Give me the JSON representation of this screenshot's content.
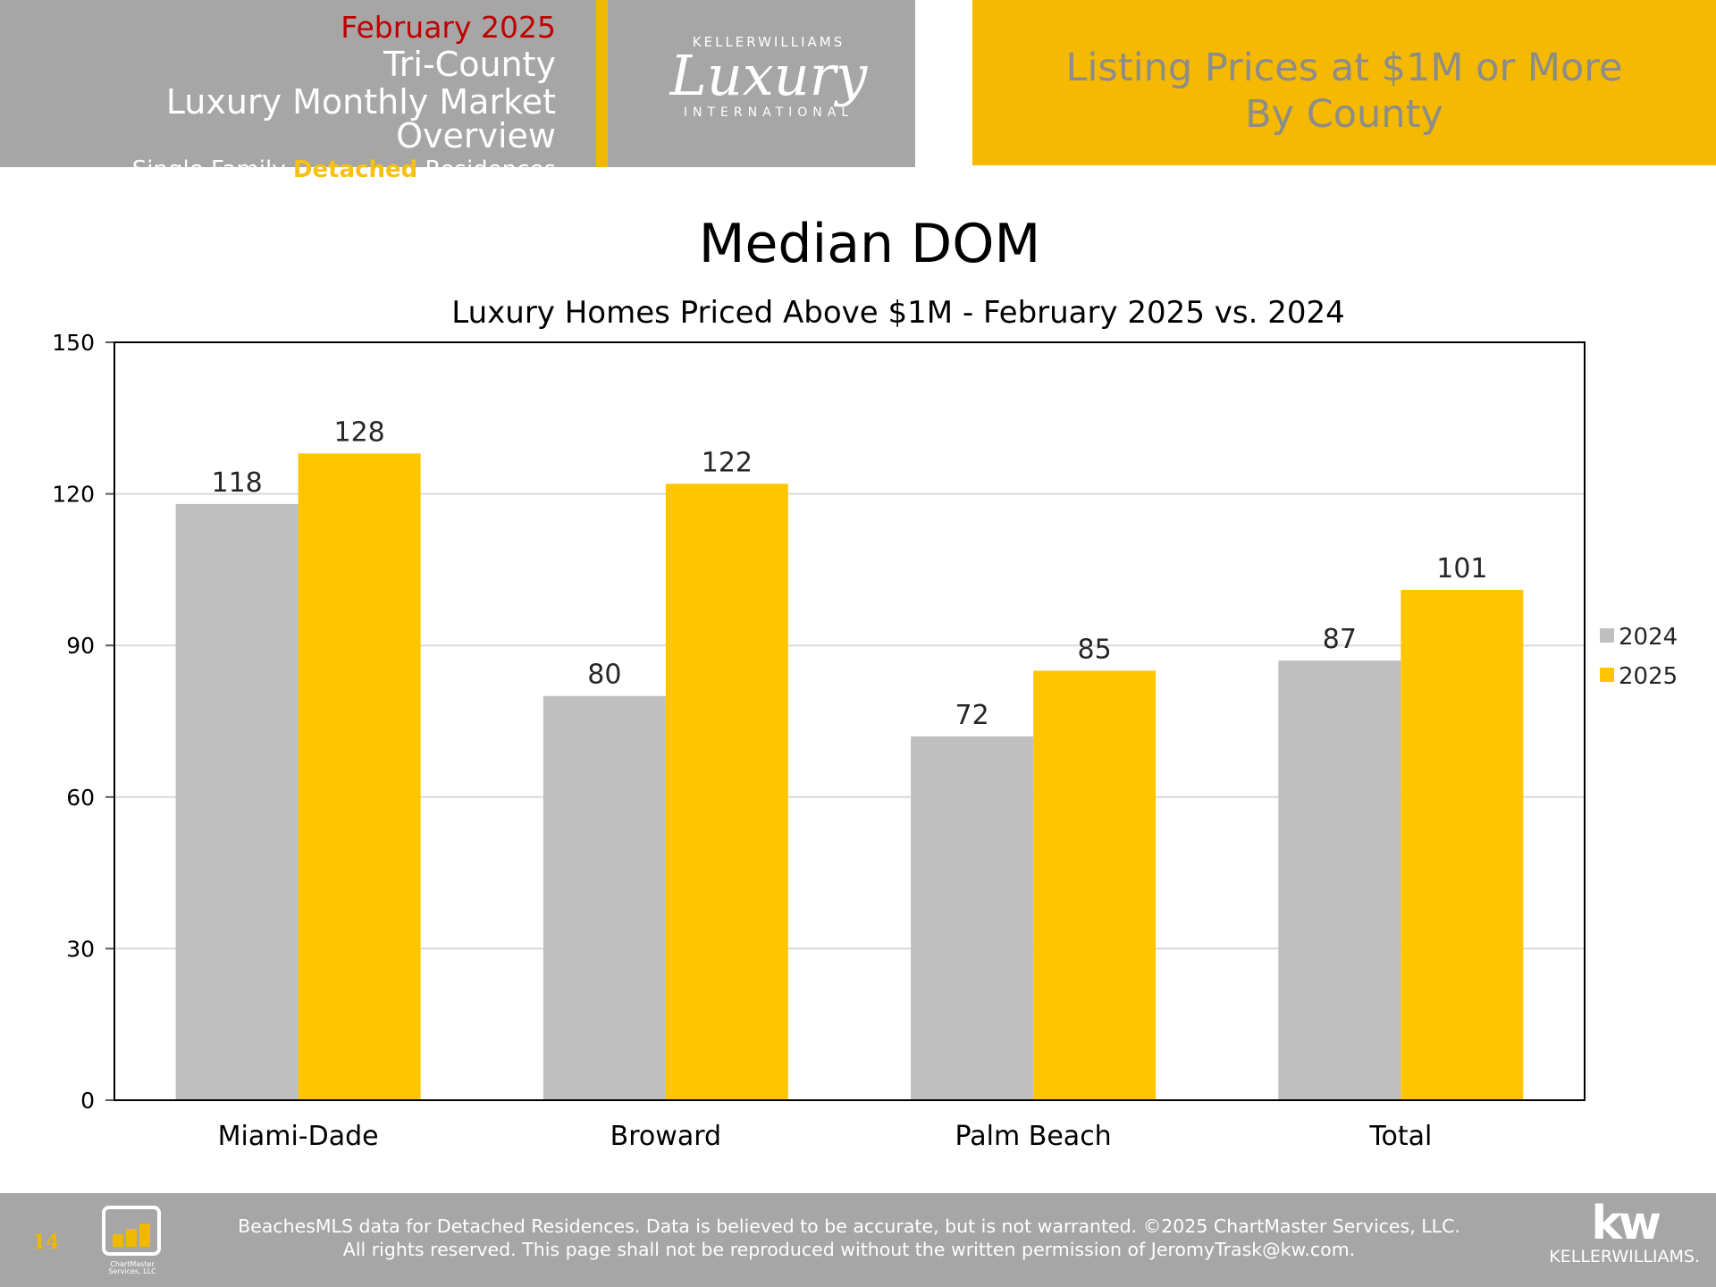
{
  "header": {
    "month": "February 2025",
    "region": "Tri-County",
    "overview": "Luxury Monthly Market Overview",
    "subtitle_pre": "Single Family",
    "subtitle_highlight": "Detached",
    "subtitle_post": "Residences",
    "logo_top": "KELLERWILLIAMS",
    "logo_script": "Luxury",
    "logo_bottom": "INTERNATIONAL",
    "right_line1": "Listing Prices at $1M or More",
    "right_line2": "By County"
  },
  "chart_data": {
    "type": "bar",
    "title": "Median DOM",
    "subtitle": "Luxury Homes Priced Above $1M - February 2025 vs. 2024",
    "categories": [
      "Miami-Dade",
      "Broward",
      "Palm Beach",
      "Total"
    ],
    "series": [
      {
        "name": "2024",
        "values": [
          118,
          80,
          72,
          87
        ],
        "color": "#bfbfbf"
      },
      {
        "name": "2025",
        "values": [
          128,
          122,
          85,
          101
        ],
        "color": "#ffc600"
      }
    ],
    "ylim": [
      0,
      150
    ],
    "yticks": [
      "0",
      "30",
      "60",
      "90",
      "120",
      "150"
    ],
    "grid": true,
    "legend": "right"
  },
  "footer": {
    "page_number": "14",
    "chartmaster_logo_text": "ChartMaster Services, LLC",
    "line1": "BeachesMLS data for Detached Residences.  Data is believed to be accurate, but is not warranted.   ©2025  ChartMaster Services, LLC.",
    "line2": "All rights reserved. This page shall not be reproduced without the written permission of JeromyTrask@kw.com.",
    "kw_logo_big": "kw",
    "kw_logo_small": "KELLERWILLIAMS."
  }
}
